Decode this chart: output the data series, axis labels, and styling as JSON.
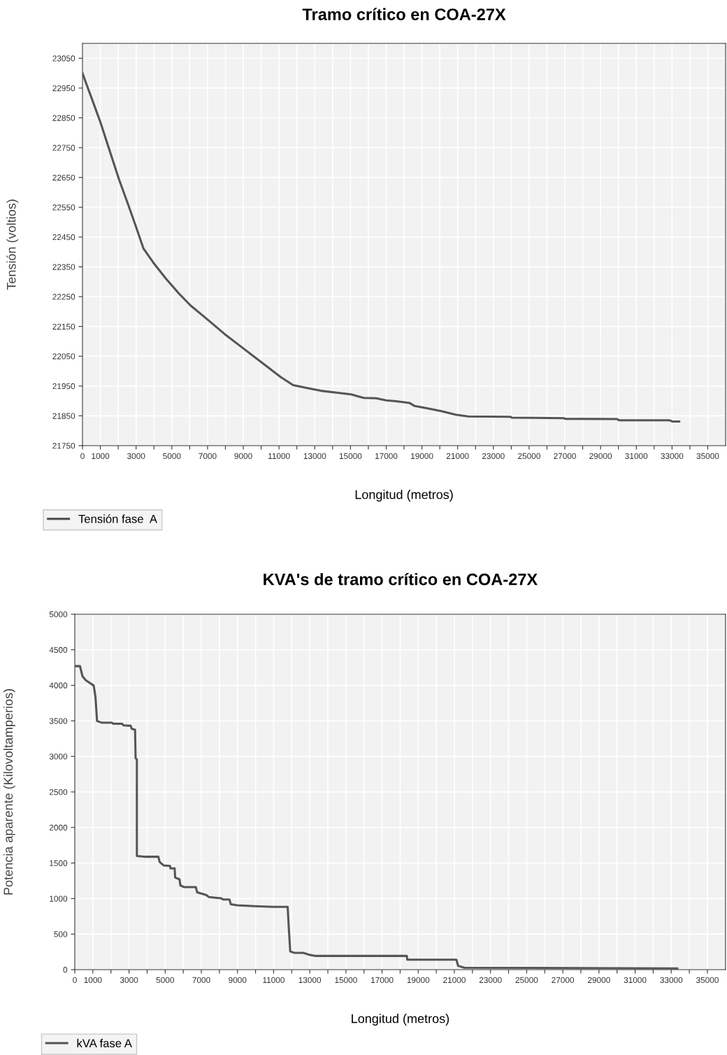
{
  "chart_data": [
    {
      "type": "line",
      "title": "Tramo crítico en COA-27X",
      "xlabel": "Longitud (metros)",
      "ylabel": "Tensión (voltios)",
      "xlim": [
        0,
        36000
      ],
      "ylim": [
        21750,
        23100
      ],
      "xticks": [
        0,
        1000,
        {
          "value": 2000,
          "label": null
        },
        3000,
        {
          "value": 4000,
          "label": null
        },
        5000,
        {
          "value": 6000,
          "label": null
        },
        7000,
        {
          "value": 8000,
          "label": null
        },
        9000,
        {
          "value": 10000,
          "label": null
        },
        11000,
        {
          "value": 12000,
          "label": null
        },
        13000,
        {
          "value": 14000,
          "label": null
        },
        15000,
        {
          "value": 16000,
          "label": null
        },
        17000,
        {
          "value": 18000,
          "label": null
        },
        19000,
        {
          "value": 20000,
          "label": null
        },
        21000,
        {
          "value": 22000,
          "label": null
        },
        23000,
        {
          "value": 24000,
          "label": null
        },
        25000,
        {
          "value": 26000,
          "label": null
        },
        27000,
        {
          "value": 28000,
          "label": null
        },
        29000,
        {
          "value": 30000,
          "label": null
        },
        31000,
        {
          "value": 32000,
          "label": null
        },
        33000,
        {
          "value": 34000,
          "label": null
        },
        35000
      ],
      "yticks": [
        21750,
        21850,
        21950,
        22050,
        22150,
        22250,
        22350,
        22450,
        22550,
        22650,
        22750,
        22850,
        22950,
        23050
      ],
      "grid": true,
      "legend": "bottom",
      "marker": "none",
      "line_style": "solid",
      "series": [
        {
          "name": "Tensión fase  A",
          "color": "#555555",
          "x": [
            0,
            226,
            487,
            1009,
            1530,
            2052,
            2574,
            3009,
            3409,
            3965,
            4661,
            5357,
            6052,
            6922,
            7965,
            9009,
            10052,
            11096,
            11791,
            12835,
            13357,
            14226,
            15042,
            15738,
            16435,
            16992,
            17549,
            18315,
            18594,
            19221,
            20057,
            20892,
            21589,
            23957,
            24027,
            26952,
            27021,
            29947,
            30016,
            32872,
            33011,
            33401
          ],
          "values": [
            23000,
            22962,
            22920,
            22834,
            22738,
            22642,
            22556,
            22482,
            22412,
            22364,
            22311,
            22263,
            22220,
            22177,
            22124,
            22076,
            22028,
            21980,
            21953,
            21940,
            21934,
            21928,
            21922,
            21910,
            21909,
            21902,
            21899,
            21893,
            21883,
            21876,
            21866,
            21854,
            21848,
            21847,
            21844,
            21842,
            21840,
            21839,
            21835,
            21835,
            21831,
            21831
          ]
        }
      ]
    },
    {
      "type": "line",
      "title": "KVA's de tramo crítico en COA-27X",
      "xlabel": "Longitud (metros)",
      "ylabel": "Potencia aparente (Kilovoltamperios)",
      "xlim": [
        0,
        36000
      ],
      "ylim": [
        0,
        5000
      ],
      "xticks": [
        0,
        1000,
        {
          "value": 2000,
          "label": null
        },
        3000,
        {
          "value": 4000,
          "label": null
        },
        5000,
        {
          "value": 6000,
          "label": null
        },
        7000,
        {
          "value": 8000,
          "label": null
        },
        9000,
        {
          "value": 10000,
          "label": null
        },
        11000,
        {
          "value": 12000,
          "label": null
        },
        13000,
        {
          "value": 14000,
          "label": null
        },
        15000,
        {
          "value": 16000,
          "label": null
        },
        17000,
        {
          "value": 18000,
          "label": null
        },
        19000,
        {
          "value": 20000,
          "label": null
        },
        21000,
        {
          "value": 22000,
          "label": null
        },
        23000,
        {
          "value": 24000,
          "label": null
        },
        25000,
        {
          "value": 26000,
          "label": null
        },
        27000,
        {
          "value": 28000,
          "label": null
        },
        29000,
        {
          "value": 30000,
          "label": null
        },
        31000,
        {
          "value": 32000,
          "label": null
        },
        33000,
        {
          "value": 34000,
          "label": null
        },
        35000
      ],
      "yticks": [
        0,
        500,
        1000,
        1500,
        2000,
        2500,
        3000,
        3500,
        4000,
        4500,
        5000
      ],
      "grid": true,
      "legend": "bottom",
      "marker": "none",
      "line_style": "solid",
      "series": [
        {
          "name": "kVA fase A",
          "color": "#555555",
          "x": [
            0,
            286,
            429,
            615,
            1045,
            1145,
            1231,
            1474,
            2046,
            2118,
            2619,
            2690,
            3091,
            3148,
            3334,
            3363,
            3434,
            3434,
            3907,
            4622,
            4694,
            4908,
            5266,
            5295,
            5524,
            5552,
            5795,
            5838,
            6053,
            6697,
            6769,
            7270,
            7413,
            8099,
            8200,
            8557,
            8629,
            8987,
            9917,
            10990,
            11777,
            11849,
            11920,
            12135,
            12636,
            12994,
            13351,
            15855,
            18368,
            18396,
            21112,
            21209,
            21556,
            33337
          ],
          "values": [
            4270,
            4270,
            4125,
            4070,
            3997,
            3833,
            3497,
            3475,
            3475,
            3460,
            3460,
            3438,
            3431,
            3387,
            3376,
            2975,
            2957,
            1599,
            1588,
            1588,
            1515,
            1467,
            1460,
            1424,
            1424,
            1296,
            1270,
            1186,
            1161,
            1161,
            1088,
            1051,
            1022,
            1004,
            986,
            986,
            920,
            905,
            894,
            883,
            883,
            548,
            256,
            237,
            237,
            208,
            193,
            193,
            194,
            141,
            141,
            53,
            28,
            18
          ]
        }
      ]
    }
  ]
}
